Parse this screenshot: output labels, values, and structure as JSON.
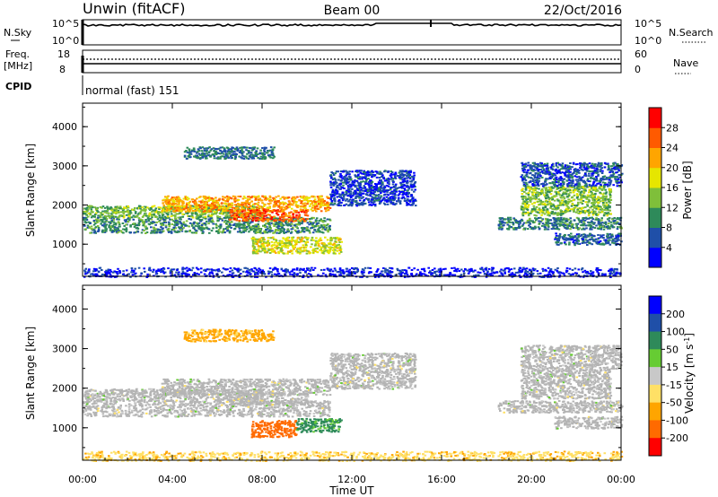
{
  "header": {
    "station": "Unwin (fitACF)",
    "beam": "Beam 00",
    "date": "22/Oct/2016"
  },
  "status_panels": {
    "nsky_label": "N.Sky",
    "nsky_hi": "10^5",
    "nsky_lo": "10^0",
    "nsearch_label": "N.Search",
    "freq_label_1": "Freq.",
    "freq_label_2": "[MHz]",
    "freq_hi": "18",
    "freq_lo": "8",
    "nave_hi": "60",
    "nave_lo": "0",
    "nave_label": "Nave",
    "cpid_label": "CPID",
    "cpid_value": "normal (fast) 151"
  },
  "colors": {
    "power_scale": [
      "#0000ff",
      "#1f4fa8",
      "#2e8a5a",
      "#7fbf3a",
      "#e6e600",
      "#ffa500",
      "#ff5a00",
      "#ff0000"
    ],
    "velocity_scale": [
      "#ff0000",
      "#ff6a00",
      "#ffa500",
      "#ffe066",
      "#c8c8c8",
      "#66cc33",
      "#2e8a5a",
      "#1f4fa8",
      "#0000ff"
    ],
    "ground_scatter": "#b4b4b4"
  },
  "chart_data": [
    {
      "type": "heatmap",
      "title": "",
      "xlabel": "",
      "ylabel": "Slant Range [km]",
      "x_ticks": [
        "00:00",
        "04:00",
        "08:00",
        "12:00",
        "16:00",
        "20:00",
        "00:00"
      ],
      "xlim_hours": [
        0,
        24
      ],
      "ylim": [
        180,
        4600
      ],
      "y_ticks": [
        "1000",
        "2000",
        "3000",
        "4000"
      ],
      "colorbar": {
        "label": "Power [dB]",
        "ticks": [
          "4",
          "8",
          "12",
          "16",
          "20",
          "24",
          "28"
        ],
        "range": [
          0,
          32
        ]
      },
      "regions": [
        {
          "t0": 0.0,
          "t1": 11.0,
          "r0": 1300,
          "r1": 1700,
          "level": 10
        },
        {
          "t0": 0.0,
          "t1": 8.0,
          "r0": 1700,
          "r1": 2000,
          "level": 13
        },
        {
          "t0": 3.5,
          "t1": 11.0,
          "r0": 1850,
          "r1": 2250,
          "level": 22
        },
        {
          "t0": 6.5,
          "t1": 10.0,
          "r0": 1600,
          "r1": 1900,
          "level": 26
        },
        {
          "t0": 4.5,
          "t1": 8.5,
          "r0": 3200,
          "r1": 3500,
          "level": 8
        },
        {
          "t0": 7.5,
          "t1": 11.5,
          "r0": 780,
          "r1": 1200,
          "level": 17
        },
        {
          "t0": 11.0,
          "t1": 14.8,
          "r0": 2000,
          "r1": 2900,
          "level": 5
        },
        {
          "t0": 18.5,
          "t1": 24.0,
          "r0": 1400,
          "r1": 1700,
          "level": 9
        },
        {
          "t0": 19.5,
          "t1": 23.5,
          "r0": 1750,
          "r1": 2500,
          "level": 14
        },
        {
          "t0": 19.5,
          "t1": 24.0,
          "r0": 2500,
          "r1": 3100,
          "level": 6
        },
        {
          "t0": 21.0,
          "t1": 24.0,
          "r0": 1000,
          "r1": 1300,
          "level": 7
        },
        {
          "t0": 0.0,
          "t1": 24.0,
          "r0": 180,
          "r1": 420,
          "level": 3
        }
      ]
    },
    {
      "type": "heatmap",
      "title": "",
      "xlabel": "Time UT",
      "ylabel": "Slant Range [km]",
      "x_ticks": [
        "00:00",
        "04:00",
        "08:00",
        "12:00",
        "16:00",
        "20:00",
        "00:00"
      ],
      "xlim_hours": [
        0,
        24
      ],
      "ylim": [
        180,
        4600
      ],
      "y_ticks": [
        "1000",
        "2000",
        "3000",
        "4000"
      ],
      "colorbar": {
        "label": "Velocity [m s^-1]",
        "ticks": [
          "200",
          "100",
          "50",
          "15",
          "-15",
          "-50",
          "-100",
          "-200"
        ],
        "range": [
          -250,
          250
        ]
      },
      "regions": [
        {
          "t0": 0.0,
          "t1": 11.0,
          "r0": 1300,
          "r1": 1700,
          "vel": 0
        },
        {
          "t0": 0.0,
          "t1": 8.0,
          "r0": 1700,
          "r1": 2000,
          "vel": 0
        },
        {
          "t0": 3.5,
          "t1": 11.0,
          "r0": 1850,
          "r1": 2250,
          "vel": 0
        },
        {
          "t0": 6.5,
          "t1": 10.0,
          "r0": 1600,
          "r1": 1900,
          "vel": 0
        },
        {
          "t0": 4.5,
          "t1": 8.5,
          "r0": 3200,
          "r1": 3500,
          "vel": -60
        },
        {
          "t0": 7.5,
          "t1": 9.5,
          "r0": 780,
          "r1": 1200,
          "vel": -150
        },
        {
          "t0": 9.5,
          "t1": 11.5,
          "r0": 900,
          "r1": 1250,
          "vel": 60
        },
        {
          "t0": 11.0,
          "t1": 14.8,
          "r0": 2000,
          "r1": 2900,
          "vel": 0
        },
        {
          "t0": 18.5,
          "t1": 24.0,
          "r0": 1400,
          "r1": 1700,
          "vel": 0
        },
        {
          "t0": 19.5,
          "t1": 23.5,
          "r0": 1750,
          "r1": 2500,
          "vel": 0
        },
        {
          "t0": 19.5,
          "t1": 24.0,
          "r0": 2500,
          "r1": 3100,
          "vel": 0
        },
        {
          "t0": 21.0,
          "t1": 24.0,
          "r0": 1000,
          "r1": 1300,
          "vel": 0
        },
        {
          "t0": 0.0,
          "t1": 24.0,
          "r0": 180,
          "r1": 420,
          "vel": -40
        }
      ]
    }
  ]
}
